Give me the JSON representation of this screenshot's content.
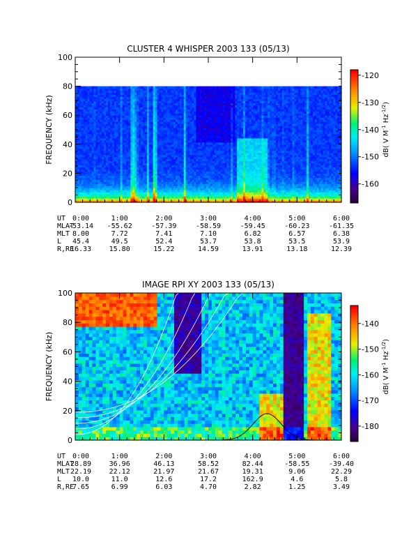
{
  "chart_data": [
    {
      "type": "heatmap",
      "title": "CLUSTER 4 WHISPER 2003 133 (05/13)",
      "ylabel": "FREQUENCY (kHz)",
      "ylim": [
        0,
        100
      ],
      "y_ticks": [
        "0",
        "20",
        "40",
        "60",
        "80",
        "100"
      ],
      "x_ticks": [
        "0:00",
        "1:00",
        "2:00",
        "3:00",
        "4:00",
        "5:00",
        "6:00"
      ],
      "data_ceiling_khz": 80,
      "colorbar": {
        "label": "dB( V M⁻¹ Hz⁻¹ᐟ²)",
        "label_parts": [
          "dB( V M",
          "-1",
          " Hz",
          "-1/2",
          ")"
        ],
        "ticks": [
          "-120",
          "-130",
          "-140",
          "-150",
          "-160"
        ],
        "range": [
          -167,
          -118
        ]
      },
      "ephemeris_labels": [
        "UT",
        "MLAT",
        "MLT",
        "L",
        "R,RE"
      ],
      "ephemeris": [
        [
          "0:00",
          "1:00",
          "2:00",
          "3:00",
          "4:00",
          "5:00",
          "6:00"
        ],
        [
          "-53.14",
          "-55.62",
          "-57.39",
          "-58.59",
          "-59.45",
          "-60.23",
          "-61.35"
        ],
        [
          "8.00",
          "7.72",
          "7.41",
          "7.10",
          "6.82",
          "6.57",
          "6.38"
        ],
        [
          "45.4",
          "49.5",
          "52.4",
          "53.7",
          "53.8",
          "53.5",
          "53.9"
        ],
        [
          "16.33",
          "15.80",
          "15.22",
          "14.59",
          "13.91",
          "13.18",
          "12.39"
        ]
      ]
    },
    {
      "type": "heatmap",
      "title": "IMAGE RPI XY 2003 133 (05/13)",
      "ylabel": "FREQUENCY (kHz)",
      "ylim": [
        0,
        100
      ],
      "y_ticks": [
        "0",
        "20",
        "40",
        "60",
        "80",
        "100"
      ],
      "x_ticks": [
        "0:00",
        "1:00",
        "2:00",
        "3:00",
        "4:00",
        "5:00",
        "6:00"
      ],
      "colorbar": {
        "label_parts": [
          "dB( V M",
          "-1",
          " Hz",
          "-1/2",
          ")"
        ],
        "ticks": [
          "-140",
          "-150",
          "-160",
          "-170",
          "-180"
        ],
        "range": [
          -186,
          -133
        ]
      },
      "ephemeris_labels": [
        "UT",
        "MLAT",
        "MLT",
        "L",
        "R,RE"
      ],
      "ephemeris": [
        [
          "0:00",
          "1:00",
          "2:00",
          "3:00",
          "4:00",
          "5:00",
          "6:00"
        ],
        [
          "28.89",
          "36.96",
          "46.13",
          "58.52",
          "82.44",
          "-58.55",
          "-39.40"
        ],
        [
          "22.19",
          "22.12",
          "21.97",
          "21.67",
          "19.31",
          "9.06",
          "22.29"
        ],
        [
          "10.0",
          "11.0",
          "12.6",
          "17.2",
          "162.9",
          "4.6",
          "5.8"
        ],
        [
          "7.65",
          "6.99",
          "6.03",
          "4.70",
          "2.82",
          "1.25",
          "3.49"
        ]
      ]
    }
  ]
}
